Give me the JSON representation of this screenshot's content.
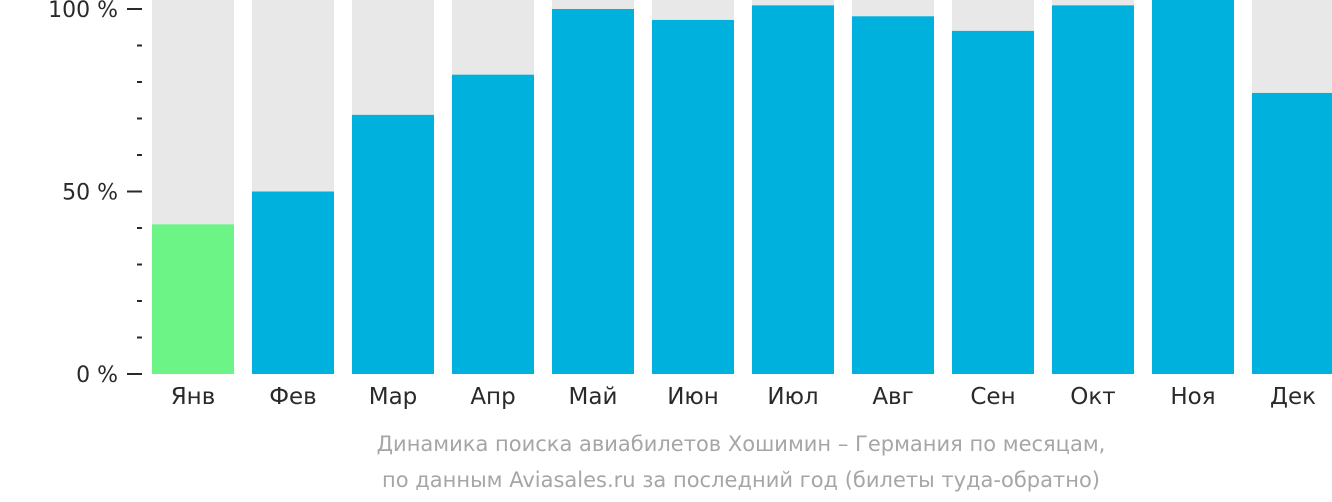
{
  "chart_data": {
    "type": "bar",
    "categories": [
      "Янв",
      "Фев",
      "Мар",
      "Апр",
      "Май",
      "Июн",
      "Июл",
      "Авг",
      "Сен",
      "Окт",
      "Ноя",
      "Дек"
    ],
    "values": [
      41,
      50,
      71,
      82,
      100,
      97,
      101,
      98,
      94,
      101,
      103,
      77
    ],
    "highlight_index": 0,
    "ylim": [
      0,
      100
    ],
    "yticks": [
      {
        "value": 100,
        "label": "100 %"
      },
      {
        "value": 50,
        "label": "50 %"
      },
      {
        "value": 0,
        "label": "0 %"
      }
    ],
    "minor_tick_step": 10,
    "colors": {
      "bar": "#00b0dd",
      "highlight": "#6cf586",
      "background_track": "#e8e8e8",
      "axis_text": "#2a2a2a",
      "caption": "#a6a6a6"
    },
    "caption_line1": "Динамика поиска авиабилетов Хошимин – Германия по месяцам,",
    "caption_line2": "по данным Aviasales.ru за последний год (билеты туда-обратно)"
  }
}
